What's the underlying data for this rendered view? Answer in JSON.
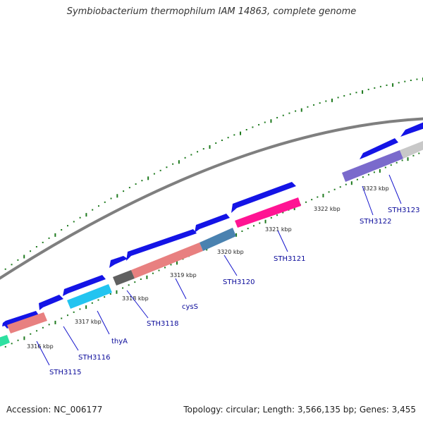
{
  "title": "Symbiobacterium thermophilum IAM 14863, complete genome",
  "footer": {
    "accession": "Accession: NC_006177",
    "topology": "Topology: circular; Length: 3,566,135 bp; Genes: 3,455"
  },
  "colors": {
    "backbone": "#7f7f7f",
    "tick": "#1e7a1e",
    "cds_arrow": "#1414e6",
    "label_line": "#1414cc",
    "label_text": "#0a0a9a"
  },
  "kbp_labels": [
    "3316 kbp",
    "3317 kbp",
    "3318 kbp",
    "3319 kbp",
    "3320 kbp",
    "3321 kbp",
    "3322 kbp",
    "3323 kbp"
  ],
  "gene_labels": [
    "STH3115",
    "STH3116",
    "thyA",
    "STH3118",
    "cysS",
    "STH3120",
    "STH3121",
    "STH3122",
    "STH3123"
  ],
  "function_colors": [
    "#2ee0a0",
    "#e88080",
    "#22c4f0",
    "#606060",
    "#e88080",
    "#4a82b0",
    "#ff1493",
    "#7a6acc",
    "#c8c8c8"
  ]
}
